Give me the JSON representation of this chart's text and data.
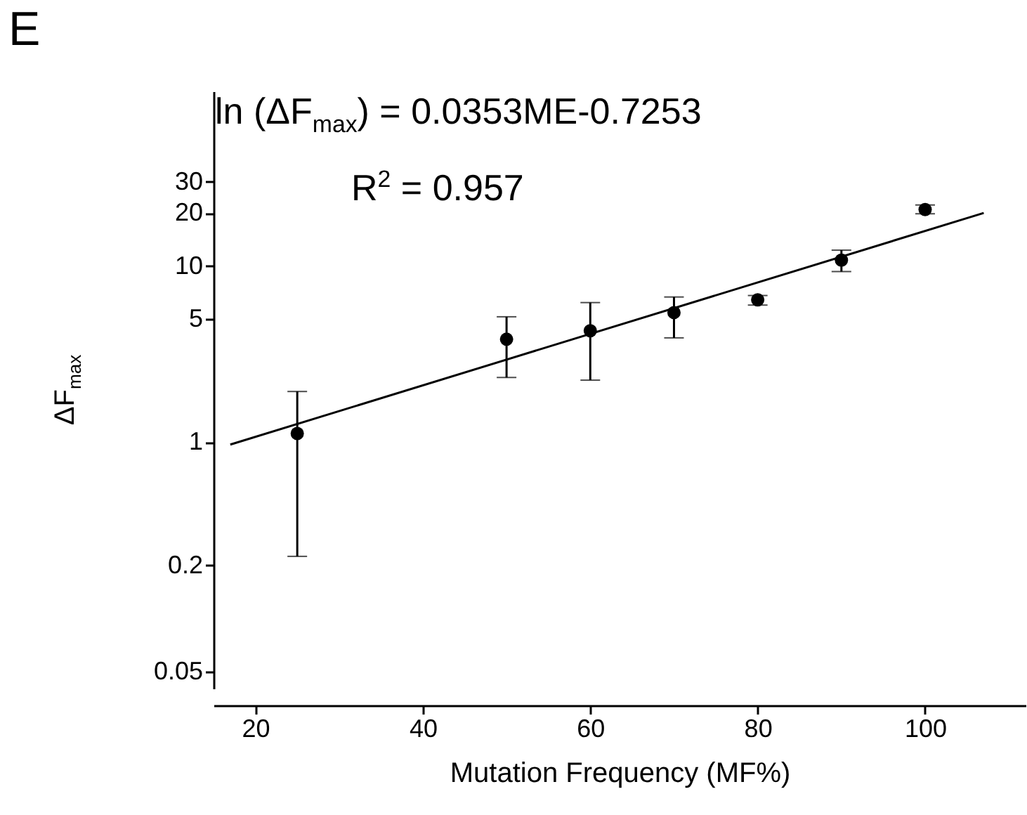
{
  "chart_data": {
    "type": "scatter",
    "xlabel": "Mutation Frequency (MF%)",
    "ylabel": "ΔF$_{max}$",
    "annotations": [
      "E",
      "ln (ΔF$_{max}$) = 0.0353ME-0.7253",
      "R$^{2}$ = 0.957"
    ],
    "log": "y",
    "xlim": [
      15,
      112
    ],
    "ylim": [
      0.04,
      98
    ],
    "xticks": [
      20,
      40,
      60,
      80,
      100
    ],
    "yticks": [
      0.05,
      0.2,
      1,
      5,
      10,
      20,
      30
    ],
    "marker": "circle",
    "series": [
      {
        "color": "#000000",
        "x": [
          25,
          50,
          60,
          70,
          80,
          90,
          100
        ],
        "values": [
          1.12,
          3.84,
          4.29,
          5.44,
          6.43,
          10.8,
          20.9
        ],
        "errors": [
          [
            0.225,
            1.94
          ],
          [
            2.33,
            5.15
          ],
          [
            2.25,
            6.2
          ],
          [
            3.91,
            6.67
          ],
          [
            6.0,
            6.8
          ],
          [
            9.3,
            12.3
          ],
          [
            19.8,
            22.2
          ]
        ]
      },
      {
        "type": "line",
        "marker": "none",
        "color": "#000000",
        "x": [
          17,
          107
        ],
        "values": [
          0.97,
          20
        ]
      }
    ]
  }
}
